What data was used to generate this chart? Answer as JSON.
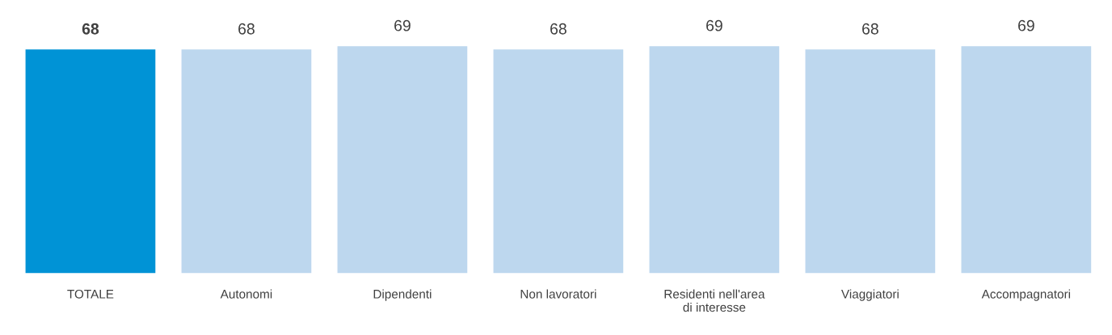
{
  "chart_data": {
    "type": "bar",
    "categories": [
      "TOTALE",
      "Autonomi",
      "Dipendenti",
      "Non lavoratori",
      "Residenti nell'area\ndi interesse",
      "Viaggiatori",
      "Accompagnatori"
    ],
    "values": [
      68,
      68,
      69,
      68,
      69,
      68,
      69
    ],
    "colors": [
      "#0093d6",
      "#bdd7ee",
      "#bdd7ee",
      "#bdd7ee",
      "#bdd7ee",
      "#bdd7ee",
      "#bdd7ee"
    ],
    "data_labels": true,
    "tick_labels": "x",
    "grid": false,
    "legend": false
  }
}
